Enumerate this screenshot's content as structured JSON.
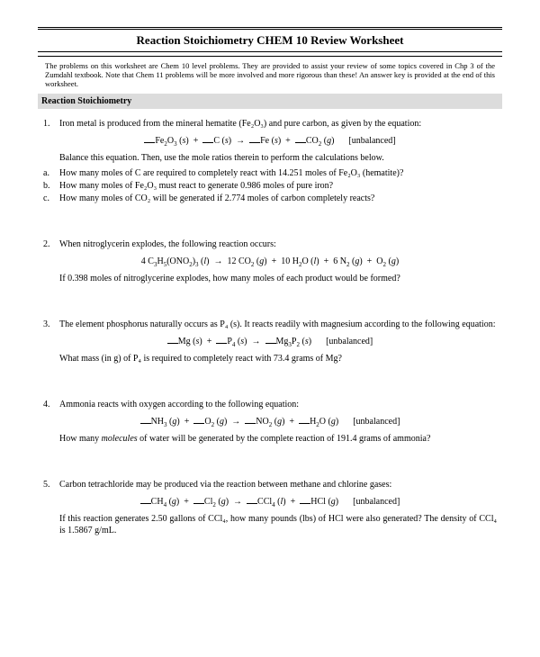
{
  "title": "Reaction Stoichiometry CHEM 10 Review Worksheet",
  "intro": "The problems on this worksheet are Chem 10 level problems.  They are provided to assist your review of some topics covered in Chp 3 of the Zumdahl textbook.  Note that Chem 11 problems will be more involved and more rigorous than these!  An answer key is provided at the end of this worksheet.",
  "section": "Reaction Stoichiometry",
  "problems": [
    {
      "num": "1.",
      "lead": "Iron metal is produced from the mineral hematite (Fe₂O₃) and pure carbon, as given by the equation:",
      "eqn_html": "<span class=\"blank\"></span>Fe<sub>2</sub>O<sub>3</sub> (<i>s</i>)&nbsp; +&nbsp; <span class=\"blank\"></span>C (<i>s</i>)&nbsp; →&nbsp; <span class=\"blank\"></span>Fe (<i>s</i>)&nbsp; +&nbsp; <span class=\"blank\"></span>CO<sub>2</sub> (<i>g</i>)<span class=\"unb\">[unbalanced]</span>",
      "after": "Balance this equation.  Then, use the mole ratios therein to perform the calculations below.",
      "subs": [
        {
          "l": "a.",
          "t": "How many moles of C are required to completely react with 14.251 moles of Fe₂O₃ (hematite)?"
        },
        {
          "l": "b.",
          "t": "How many moles of Fe₂O₃ must react to generate 0.986 moles of pure iron?"
        },
        {
          "l": "c.",
          "t": "How many moles of CO₂ will be generated if 2.774 moles of carbon completely reacts?"
        }
      ]
    },
    {
      "num": "2.",
      "lead": "When nitroglycerin explodes, the following reaction occurs:",
      "eqn_html": "4 C<sub>3</sub>H<sub>5</sub>(ONO<sub>2</sub>)<sub>3</sub> (<i>l</i>)&nbsp; →&nbsp; 12 CO<sub>2</sub> (<i>g</i>)&nbsp; +&nbsp; 10 H<sub>2</sub>O (<i>l</i>)&nbsp; +&nbsp; 6 N<sub>2</sub> (<i>g</i>)&nbsp; +&nbsp; O<sub>2</sub> (<i>g</i>)",
      "after": "If 0.398 moles of nitroglycerine explodes, how many moles of each product would be formed?"
    },
    {
      "num": "3.",
      "lead": "The element phosphorus naturally occurs as P₄ (s).  It reacts readily with magnesium according to the following equation:",
      "eqn_html": "<span class=\"blank\"></span>Mg (<i>s</i>)&nbsp; +&nbsp; <span class=\"blank\"></span>P<sub>4</sub> (<i>s</i>)&nbsp; →&nbsp; <span class=\"blank\"></span>Mg<sub>3</sub>P<sub>2</sub> (<i>s</i>)<span class=\"unb\">[unbalanced]</span>",
      "after": "What mass (in g) of P₄ is required to completely react with 73.4 grams of Mg?"
    },
    {
      "num": "4.",
      "lead": "Ammonia reacts with oxygen according to the following equation:",
      "eqn_html": "<span class=\"blank\"></span>NH<sub>3</sub> (<i>g</i>)&nbsp; +&nbsp; <span class=\"blank\"></span>O<sub>2</sub> (<i>g</i>)&nbsp; →&nbsp; <span class=\"blank\"></span>NO<sub>2</sub> (<i>g</i>)&nbsp; +&nbsp; <span class=\"blank\"></span>H<sub>2</sub>O (<i>g</i>)<span class=\"unb\">[unbalanced]</span>",
      "after_html": "How many <span class=\"ital\">molecules</span> of water will be generated by the complete reaction of 191.4 grams of ammonia?"
    },
    {
      "num": "5.",
      "lead": "Carbon tetrachloride may be produced via the reaction between methane and chlorine gases:",
      "eqn_html": "<span class=\"blank\"></span>CH<sub>4</sub> (<i>g</i>)&nbsp; +&nbsp; <span class=\"blank\"></span>Cl<sub>2</sub> (<i>g</i>)&nbsp; →&nbsp; <span class=\"blank\"></span>CCl<sub>4</sub> (<i>l</i>)&nbsp; +&nbsp; <span class=\"blank\"></span>HCl (<i>g</i>)<span class=\"unb\">[unbalanced]</span>",
      "after": "If this reaction generates 2.50 gallons of CCl₄, how many pounds (lbs) of HCl were also generated?  The density of CCl₄ is 1.5867 g/mL."
    }
  ]
}
